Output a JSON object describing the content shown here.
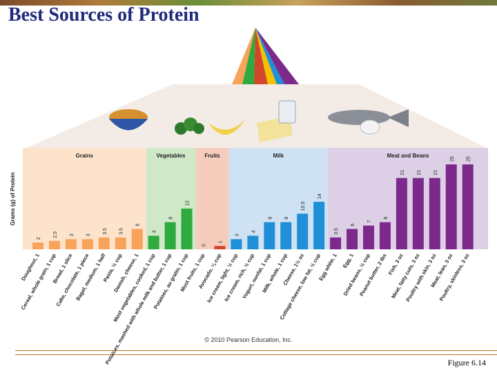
{
  "slide": {
    "title": "Best Sources of Protein",
    "copyright": "© 2010 Pearson Education, Inc.",
    "figure_caption": "Figure 6.14"
  },
  "colors": {
    "grains": "#f7a35a",
    "vegetables": "#2eaa3f",
    "fruits": "#d2462a",
    "milk": "#1f8fd8",
    "meat_beans": "#7b2a8c",
    "title": "#1f2a7a"
  },
  "illustrations": [
    "cereal-bowl-icon",
    "broccoli-icon",
    "banana-icon",
    "cheese-icon",
    "milk-glass-icon",
    "fish-icon",
    "egg-icon",
    "food-pyramid-icon"
  ],
  "chart_data": {
    "type": "bar",
    "ylabel": "Grams (g) of Protein",
    "groups": [
      {
        "name": "Grains",
        "color": "#f7a35a",
        "bg": "#fde3cc"
      },
      {
        "name": "Vegetables",
        "color": "#2eaa3f",
        "bg": "#cfe8c8"
      },
      {
        "name": "Fruits",
        "color": "#d2462a",
        "bg": "#f6cdbd"
      },
      {
        "name": "Milk",
        "color": "#1f8fd8",
        "bg": "#cfe2f3"
      },
      {
        "name": "Meat and Beans",
        "color": "#7b2a8c",
        "bg": "#ddcfe6"
      }
    ],
    "categories": [
      {
        "label": "Doughnut, 1",
        "value": 2,
        "value_label": "2",
        "group": 0
      },
      {
        "label": "Cereal, whole grain, 1 cup",
        "value": 2.5,
        "value_label": "2.5",
        "group": 0
      },
      {
        "label": "Bread, 1 slice",
        "value": 3,
        "value_label": "3",
        "group": 0
      },
      {
        "label": "Cake, chocolate, 1 piece",
        "value": 3,
        "value_label": "3",
        "group": 0
      },
      {
        "label": "Bagel, medium, 1 half",
        "value": 3.5,
        "value_label": "3.5",
        "group": 0
      },
      {
        "label": "Pasta, ½ cup",
        "value": 3.5,
        "value_label": "3.5",
        "group": 0
      },
      {
        "label": "Danish, cheese, 1",
        "value": 6,
        "value_label": "6",
        "group": 0
      },
      {
        "label": "Most vegetables, cooked, 1 cup",
        "value": 4,
        "value_label": "4",
        "group": 1
      },
      {
        "label": "Potatoes, mashed with whole milk and butter, 1 cup",
        "value": 8,
        "value_label": "8",
        "group": 1
      },
      {
        "label": "Potatoes, au gratin, 1 cup",
        "value": 12,
        "value_label": "12",
        "group": 1
      },
      {
        "label": "Most fruits, 1 cup",
        "value": 0,
        "value_label": "0",
        "group": 2
      },
      {
        "label": "Avocado, ¼ cup",
        "value": 1,
        "value_label": "1",
        "group": 2
      },
      {
        "label": "Ice cream, light, ½ cup",
        "value": 3,
        "value_label": "3",
        "group": 3
      },
      {
        "label": "Ice cream, rich, ½ cup",
        "value": 4,
        "value_label": "4",
        "group": 3
      },
      {
        "label": "Yogurt, nonfat, 1 cup",
        "value": 8,
        "value_label": "8",
        "group": 3
      },
      {
        "label": "Milk, whole, 1 cup",
        "value": 8,
        "value_label": "8",
        "group": 3
      },
      {
        "label": "Cheese, 1½ oz",
        "value": 10.5,
        "value_label": "10.5",
        "group": 3
      },
      {
        "label": "Cottage cheese, low fat, ½ cup",
        "value": 14,
        "value_label": "14",
        "group": 3
      },
      {
        "label": "Egg white, 1",
        "value": 3.5,
        "value_label": "3.5",
        "group": 4
      },
      {
        "label": "Egg, 1",
        "value": 6,
        "value_label": "6",
        "group": 4
      },
      {
        "label": "Dried beans, ½ cup",
        "value": 7,
        "value_label": "7",
        "group": 4
      },
      {
        "label": "Peanut butter, 2 tbs",
        "value": 8,
        "value_label": "8",
        "group": 4
      },
      {
        "label": "Fish, 3 oz",
        "value": 21,
        "value_label": "21",
        "group": 4
      },
      {
        "label": "Meat, fatty cuts, 3 oz",
        "value": 21,
        "value_label": "21",
        "group": 4
      },
      {
        "label": "Poultry with skin, 3 oz",
        "value": 21,
        "value_label": "21",
        "group": 4
      },
      {
        "label": "Meat, lean, 3 oz",
        "value": 25,
        "value_label": "25",
        "group": 4
      },
      {
        "label": "Poultry, skinless, 3 oz",
        "value": 25,
        "value_label": "25",
        "group": 4
      }
    ],
    "ylim": [
      0,
      25
    ],
    "grid": false,
    "legend": "group headers above bars"
  }
}
